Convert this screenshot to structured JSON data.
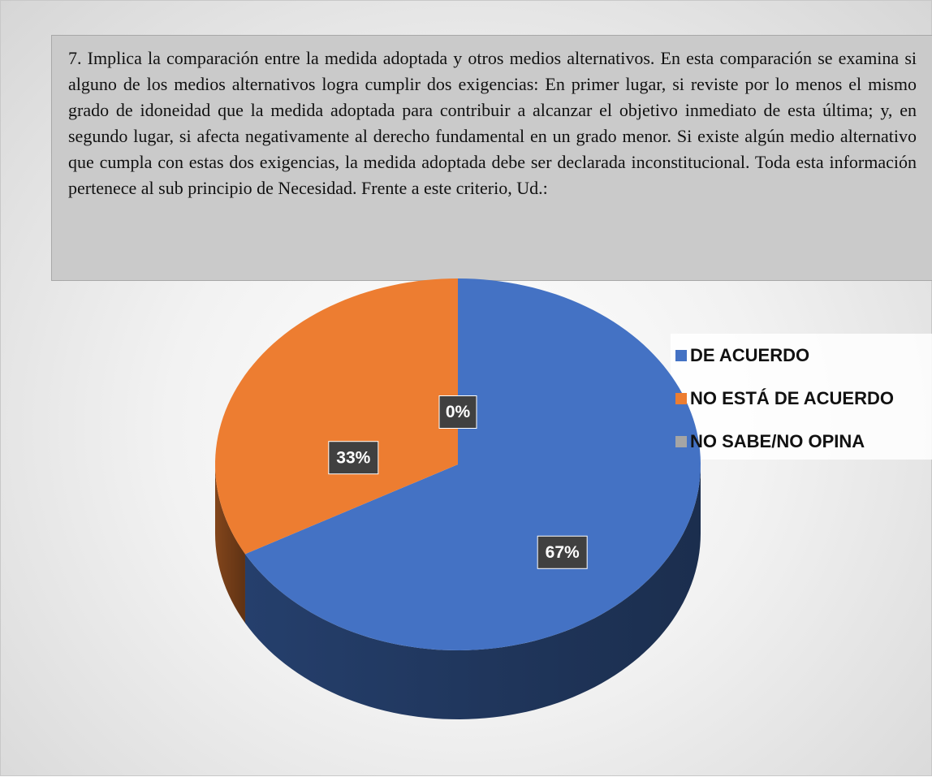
{
  "chart_data": {
    "type": "pie",
    "title": "7. Implica la comparación entre la medida adoptada y otros medios alternativos. En esta comparación se examina si alguno de los medios alternativos logra cumplir dos exigencias: En primer lugar, si reviste por lo menos el mismo grado de idoneidad que la medida adoptada para contribuir a alcanzar el objetivo inmediato de esta última; y, en segundo lugar, si afecta negativamente al derecho fundamental en un grado menor. Si existe algún medio alternativo que cumpla con estas dos exigencias, la medida adoptada debe ser declarada inconstitucional. Toda esta información pertenece al sub principio de Necesidad. Frente a este criterio, Ud.:",
    "categories": [
      "DE ACUERDO",
      "NO ESTÁ DE ACUERDO",
      "NO SABE/NO OPINA"
    ],
    "values": [
      67,
      33,
      0
    ],
    "value_labels": [
      "67%",
      "33%",
      "0%"
    ],
    "colors": [
      "#4472c4",
      "#ed7d31",
      "#a5a5a5"
    ],
    "legend": "right"
  }
}
